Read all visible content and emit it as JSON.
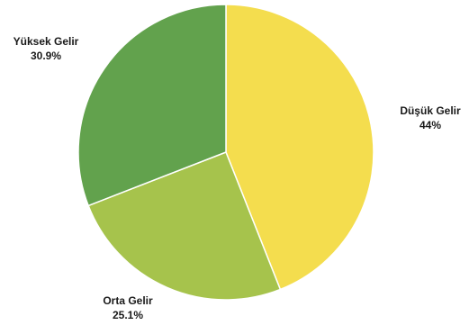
{
  "chart_data": {
    "type": "pie",
    "categories": [
      "Düşük Gelir",
      "Orta Gelir",
      "Yüksek Gelir"
    ],
    "values": [
      44,
      25.1,
      30.9
    ],
    "value_labels": [
      "44%",
      "25.1%",
      "30.9%"
    ],
    "colors": [
      "#f4dd4e",
      "#a6c34c",
      "#62a24d"
    ],
    "start_angle_deg": 0,
    "direction": "clockwise",
    "legend": "none"
  }
}
